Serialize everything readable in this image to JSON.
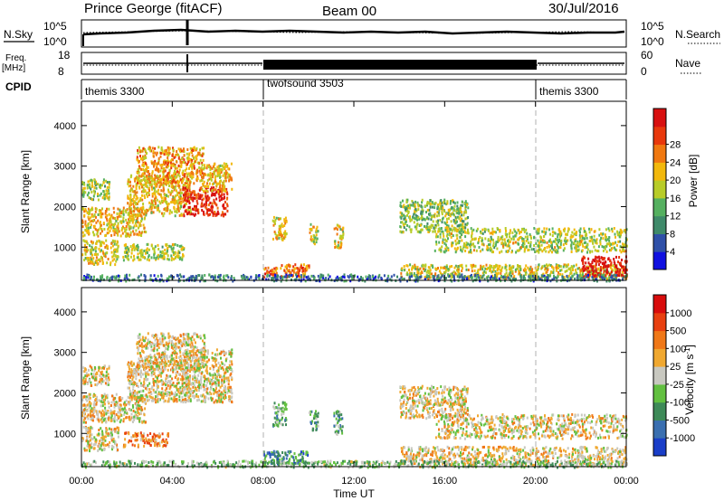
{
  "header": {
    "station": "Prince George (fitACF)",
    "beam": "Beam 00",
    "date": "30/Jul/2016"
  },
  "nsky_panel": {
    "left_label": "N.Sky",
    "right_label": "N.Search",
    "left_ticks": [
      "10^5",
      "10^0"
    ],
    "right_ticks": [
      "10^5",
      "10^0"
    ]
  },
  "freq_panel": {
    "left_label_1": "Freq.",
    "left_label_2": "[MHz]",
    "left_ticks": [
      "18",
      "8"
    ],
    "right_label": "Nave",
    "right_ticks": [
      "60",
      "0"
    ]
  },
  "cpid_panel": {
    "label": "CPID",
    "segments": [
      {
        "name": "themis 3300",
        "start_hour": 0,
        "end_hour": 8
      },
      {
        "name": "twofsound 3503",
        "start_hour": 8,
        "end_hour": 20
      },
      {
        "name": "themis 3300",
        "start_hour": 20,
        "end_hour": 24
      }
    ]
  },
  "chart_data": [
    {
      "type": "heatmap",
      "title": "",
      "ylabel": "Slant Range [km]",
      "xlabel": "",
      "xlim": [
        0,
        24
      ],
      "ylim": [
        180,
        4600
      ],
      "yticks": [
        "1000",
        "2000",
        "3000",
        "4000"
      ],
      "colorbar": {
        "label": "Power [dB]",
        "ticks": [
          "4",
          "8",
          "12",
          "16",
          "20",
          "24",
          "28"
        ],
        "colors": [
          "#1010e0",
          "#2f50a8",
          "#3f8a6a",
          "#55b060",
          "#b8cc28",
          "#f2b80c",
          "#f07810",
          "#e8380c",
          "#d81010"
        ]
      },
      "regions": [
        {
          "t0": 0.0,
          "t1": 1.6,
          "r0": 600,
          "r1": 1200,
          "level": 0.55
        },
        {
          "t0": 0.0,
          "t1": 2.8,
          "r0": 1300,
          "r1": 2000,
          "level": 0.6
        },
        {
          "t0": 0.0,
          "t1": 1.2,
          "r0": 2200,
          "r1": 2700,
          "level": 0.45
        },
        {
          "t0": 1.8,
          "t1": 4.5,
          "r0": 700,
          "r1": 1100,
          "level": 0.5
        },
        {
          "t0": 2.0,
          "t1": 4.8,
          "r0": 1800,
          "r1": 2800,
          "level": 0.6
        },
        {
          "t0": 2.4,
          "t1": 5.4,
          "r0": 2600,
          "r1": 3500,
          "level": 0.65
        },
        {
          "t0": 4.4,
          "t1": 6.4,
          "r0": 1800,
          "r1": 2500,
          "level": 0.9
        },
        {
          "t0": 5.2,
          "t1": 6.6,
          "r0": 2400,
          "r1": 3100,
          "level": 0.6
        },
        {
          "t0": 8.4,
          "t1": 9.0,
          "r0": 1200,
          "r1": 1800,
          "level": 0.6
        },
        {
          "t0": 10.0,
          "t1": 10.4,
          "r0": 1100,
          "r1": 1600,
          "level": 0.55
        },
        {
          "t0": 11.1,
          "t1": 11.5,
          "r0": 1000,
          "r1": 1600,
          "level": 0.55
        },
        {
          "t0": 14.0,
          "t1": 17.0,
          "r0": 1400,
          "r1": 2200,
          "level": 0.45
        },
        {
          "t0": 15.5,
          "t1": 24.0,
          "r0": 900,
          "r1": 1500,
          "level": 0.5
        },
        {
          "t0": 14.0,
          "t1": 24.0,
          "r0": 250,
          "r1": 600,
          "level": 0.55
        },
        {
          "t0": 22.0,
          "t1": 24.0,
          "r0": 300,
          "r1": 800,
          "level": 0.95
        },
        {
          "t0": 8.0,
          "t1": 10.0,
          "r0": 280,
          "r1": 600,
          "level": 0.75
        },
        {
          "t0": 0.0,
          "t1": 24.0,
          "r0": 190,
          "r1": 350,
          "level": 0.25
        }
      ]
    },
    {
      "type": "heatmap",
      "title": "",
      "ylabel": "Slant Range [km]",
      "xlabel": "Time UT",
      "xlim": [
        0,
        24
      ],
      "ylim": [
        180,
        4600
      ],
      "xticks": [
        "00:00",
        "04:00",
        "08:00",
        "12:00",
        "16:00",
        "20:00",
        "00:00"
      ],
      "yticks": [
        "1000",
        "2000",
        "3000",
        "4000"
      ],
      "colorbar": {
        "label": "Velocity [m s^-1]",
        "ticks": [
          "1000",
          "500",
          "100",
          "25",
          "-25",
          "-100",
          "-500",
          "-1000"
        ],
        "colors": [
          "#1a3ec8",
          "#3a6fb0",
          "#3e8a58",
          "#62c040",
          "#c8c8c0",
          "#f0a830",
          "#f07818",
          "#e84010",
          "#d80c0c"
        ]
      },
      "regions": [
        {
          "t0": 0.0,
          "t1": 1.6,
          "r0": 600,
          "r1": 1200,
          "level": 0.55
        },
        {
          "t0": 0.0,
          "t1": 2.8,
          "r0": 1300,
          "r1": 2000,
          "level": 0.55
        },
        {
          "t0": 0.0,
          "t1": 1.2,
          "r0": 2200,
          "r1": 2700,
          "level": 0.55
        },
        {
          "t0": 2.0,
          "t1": 4.8,
          "r0": 1800,
          "r1": 2800,
          "level": 0.55
        },
        {
          "t0": 2.4,
          "t1": 5.4,
          "r0": 2600,
          "r1": 3500,
          "level": 0.55
        },
        {
          "t0": 4.4,
          "t1": 6.6,
          "r0": 1800,
          "r1": 3100,
          "level": 0.55
        },
        {
          "t0": 1.8,
          "t1": 3.8,
          "r0": 700,
          "r1": 1050,
          "level": 0.7
        },
        {
          "t0": 8.4,
          "t1": 9.0,
          "r0": 1200,
          "r1": 1800,
          "level": 0.35
        },
        {
          "t0": 10.0,
          "t1": 10.4,
          "r0": 1100,
          "r1": 1600,
          "level": 0.3
        },
        {
          "t0": 11.1,
          "t1": 11.5,
          "r0": 1000,
          "r1": 1600,
          "level": 0.3
        },
        {
          "t0": 14.0,
          "t1": 17.0,
          "r0": 1400,
          "r1": 2200,
          "level": 0.55
        },
        {
          "t0": 15.5,
          "t1": 24.0,
          "r0": 900,
          "r1": 1500,
          "level": 0.55
        },
        {
          "t0": 14.0,
          "t1": 24.0,
          "r0": 250,
          "r1": 700,
          "level": 0.55
        },
        {
          "t0": 8.0,
          "t1": 10.0,
          "r0": 280,
          "r1": 600,
          "level": 0.25
        },
        {
          "t0": 0.0,
          "t1": 24.0,
          "r0": 190,
          "r1": 350,
          "level": 0.4
        }
      ]
    }
  ]
}
